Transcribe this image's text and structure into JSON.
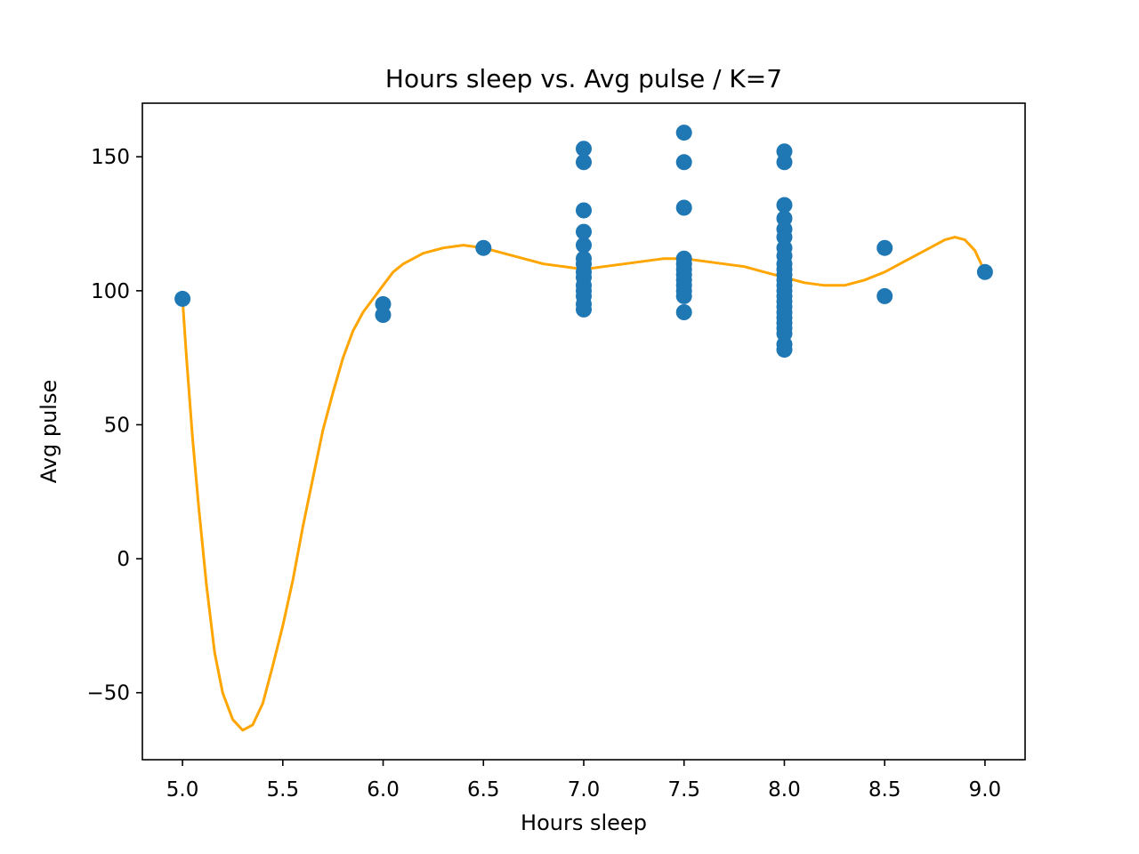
{
  "chart_data": {
    "type": "scatter",
    "title": "Hours sleep vs. Avg pulse / K=7",
    "xlabel": "Hours sleep",
    "ylabel": "Avg pulse",
    "xlim": [
      4.8,
      9.2
    ],
    "ylim": [
      -75,
      170
    ],
    "xticks": [
      5.0,
      5.5,
      6.0,
      6.5,
      7.0,
      7.5,
      8.0,
      8.5,
      9.0
    ],
    "xtick_labels": [
      "5.0",
      "5.5",
      "6.0",
      "6.5",
      "7.0",
      "7.5",
      "8.0",
      "8.5",
      "9.0"
    ],
    "yticks": [
      -50,
      0,
      50,
      100,
      150
    ],
    "ytick_labels": [
      "−50",
      "0",
      "50",
      "100",
      "150"
    ],
    "grid": false,
    "scatter": {
      "color": "#1f77b4",
      "points": [
        [
          5.0,
          97
        ],
        [
          6.0,
          95
        ],
        [
          6.0,
          91
        ],
        [
          6.5,
          116
        ],
        [
          7.0,
          153
        ],
        [
          7.0,
          148
        ],
        [
          7.0,
          130
        ],
        [
          7.0,
          122
        ],
        [
          7.0,
          117
        ],
        [
          7.0,
          112
        ],
        [
          7.0,
          110
        ],
        [
          7.0,
          107
        ],
        [
          7.0,
          105
        ],
        [
          7.0,
          102
        ],
        [
          7.0,
          100
        ],
        [
          7.0,
          98
        ],
        [
          7.0,
          95
        ],
        [
          7.0,
          93
        ],
        [
          7.5,
          159
        ],
        [
          7.5,
          148
        ],
        [
          7.5,
          131
        ],
        [
          7.5,
          112
        ],
        [
          7.5,
          110
        ],
        [
          7.5,
          108
        ],
        [
          7.5,
          106
        ],
        [
          7.5,
          104
        ],
        [
          7.5,
          102
        ],
        [
          7.5,
          100
        ],
        [
          7.5,
          98
        ],
        [
          7.5,
          92
        ],
        [
          8.0,
          152
        ],
        [
          8.0,
          148
        ],
        [
          8.0,
          132
        ],
        [
          8.0,
          127
        ],
        [
          8.0,
          123
        ],
        [
          8.0,
          120
        ],
        [
          8.0,
          116
        ],
        [
          8.0,
          113
        ],
        [
          8.0,
          110
        ],
        [
          8.0,
          108
        ],
        [
          8.0,
          106
        ],
        [
          8.0,
          104
        ],
        [
          8.0,
          102
        ],
        [
          8.0,
          100
        ],
        [
          8.0,
          98
        ],
        [
          8.0,
          96
        ],
        [
          8.0,
          94
        ],
        [
          8.0,
          92
        ],
        [
          8.0,
          90
        ],
        [
          8.0,
          88
        ],
        [
          8.0,
          86
        ],
        [
          8.0,
          84
        ],
        [
          8.0,
          80
        ],
        [
          8.0,
          78
        ],
        [
          8.5,
          116
        ],
        [
          8.5,
          98
        ],
        [
          9.0,
          107
        ]
      ]
    },
    "fit_line": {
      "color": "#ffa500",
      "points": [
        [
          5.0,
          97
        ],
        [
          5.02,
          75
        ],
        [
          5.05,
          45
        ],
        [
          5.08,
          20
        ],
        [
          5.12,
          -10
        ],
        [
          5.16,
          -35
        ],
        [
          5.2,
          -50
        ],
        [
          5.25,
          -60
        ],
        [
          5.3,
          -64
        ],
        [
          5.35,
          -62
        ],
        [
          5.4,
          -54
        ],
        [
          5.45,
          -40
        ],
        [
          5.5,
          -25
        ],
        [
          5.55,
          -8
        ],
        [
          5.6,
          12
        ],
        [
          5.65,
          30
        ],
        [
          5.7,
          48
        ],
        [
          5.75,
          62
        ],
        [
          5.8,
          75
        ],
        [
          5.85,
          85
        ],
        [
          5.9,
          92
        ],
        [
          5.95,
          97
        ],
        [
          6.0,
          102
        ],
        [
          6.05,
          107
        ],
        [
          6.1,
          110
        ],
        [
          6.15,
          112
        ],
        [
          6.2,
          114
        ],
        [
          6.3,
          116
        ],
        [
          6.4,
          117
        ],
        [
          6.5,
          116
        ],
        [
          6.6,
          114
        ],
        [
          6.7,
          112
        ],
        [
          6.8,
          110
        ],
        [
          6.9,
          109
        ],
        [
          7.0,
          108
        ],
        [
          7.1,
          109
        ],
        [
          7.2,
          110
        ],
        [
          7.3,
          111
        ],
        [
          7.4,
          112
        ],
        [
          7.5,
          112
        ],
        [
          7.6,
          111
        ],
        [
          7.7,
          110
        ],
        [
          7.8,
          109
        ],
        [
          7.9,
          107
        ],
        [
          8.0,
          105
        ],
        [
          8.1,
          103
        ],
        [
          8.2,
          102
        ],
        [
          8.3,
          102
        ],
        [
          8.4,
          104
        ],
        [
          8.5,
          107
        ],
        [
          8.6,
          111
        ],
        [
          8.7,
          115
        ],
        [
          8.8,
          119
        ],
        [
          8.85,
          120
        ],
        [
          8.9,
          119
        ],
        [
          8.95,
          115
        ],
        [
          9.0,
          107
        ]
      ]
    }
  }
}
